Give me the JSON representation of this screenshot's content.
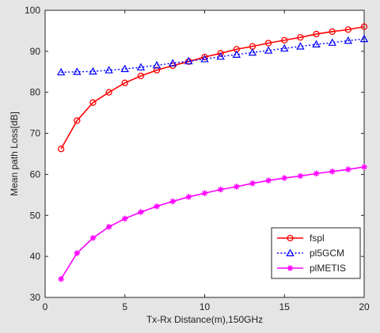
{
  "chart_data": {
    "type": "line",
    "xlabel": "Tx-Rx Distance(m),150GHz",
    "ylabel": "Mean path Loss[dB]",
    "xlim": [
      0,
      20
    ],
    "ylim": [
      30,
      100
    ],
    "xticks": [
      0,
      5,
      10,
      15,
      20
    ],
    "yticks": [
      30,
      40,
      50,
      60,
      70,
      80,
      90,
      100
    ],
    "grid": false,
    "legend_position": "bottom-right",
    "x": [
      1,
      2,
      3,
      4,
      5,
      6,
      7,
      8,
      9,
      10,
      11,
      12,
      13,
      14,
      15,
      16,
      17,
      18,
      19,
      20
    ],
    "series": [
      {
        "name": "fspl",
        "color": "#ff0000",
        "line_style": "solid",
        "marker": "circle",
        "values": [
          66.2,
          73.1,
          77.5,
          80.0,
          82.3,
          84.0,
          85.4,
          86.5,
          87.5,
          88.6,
          89.5,
          90.5,
          91.2,
          92.0,
          92.7,
          93.4,
          94.2,
          94.8,
          95.3,
          96.0
        ]
      },
      {
        "name": "pl5GCM",
        "color": "#0000ff",
        "line_style": "dotted",
        "marker": "triangle",
        "values": [
          84.9,
          85.0,
          85.1,
          85.4,
          85.7,
          86.1,
          86.6,
          87.1,
          87.6,
          88.1,
          88.7,
          89.2,
          89.7,
          90.2,
          90.7,
          91.2,
          91.7,
          92.1,
          92.6,
          93.0
        ]
      },
      {
        "name": "plMETIS",
        "color": "#ff00ff",
        "line_style": "solid",
        "marker": "star",
        "values": [
          34.5,
          40.8,
          44.5,
          47.2,
          49.2,
          50.8,
          52.2,
          53.4,
          54.5,
          55.4,
          56.3,
          57.0,
          57.8,
          58.5,
          59.1,
          59.6,
          60.2,
          60.7,
          61.2,
          61.8
        ]
      }
    ]
  }
}
